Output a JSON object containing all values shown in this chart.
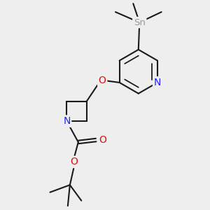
{
  "background_color": "#eeeeee",
  "bond_color": "#1a1a1a",
  "bond_lw": 1.5,
  "atom_colors": {
    "N": "#2222ff",
    "O": "#dd1111",
    "Sn": "#999999"
  },
  "font_size": 8.0,
  "fig_size": [
    3.0,
    3.0
  ],
  "dpi": 100,
  "xlim": [
    -1,
    9
  ],
  "ylim": [
    -1,
    9
  ]
}
